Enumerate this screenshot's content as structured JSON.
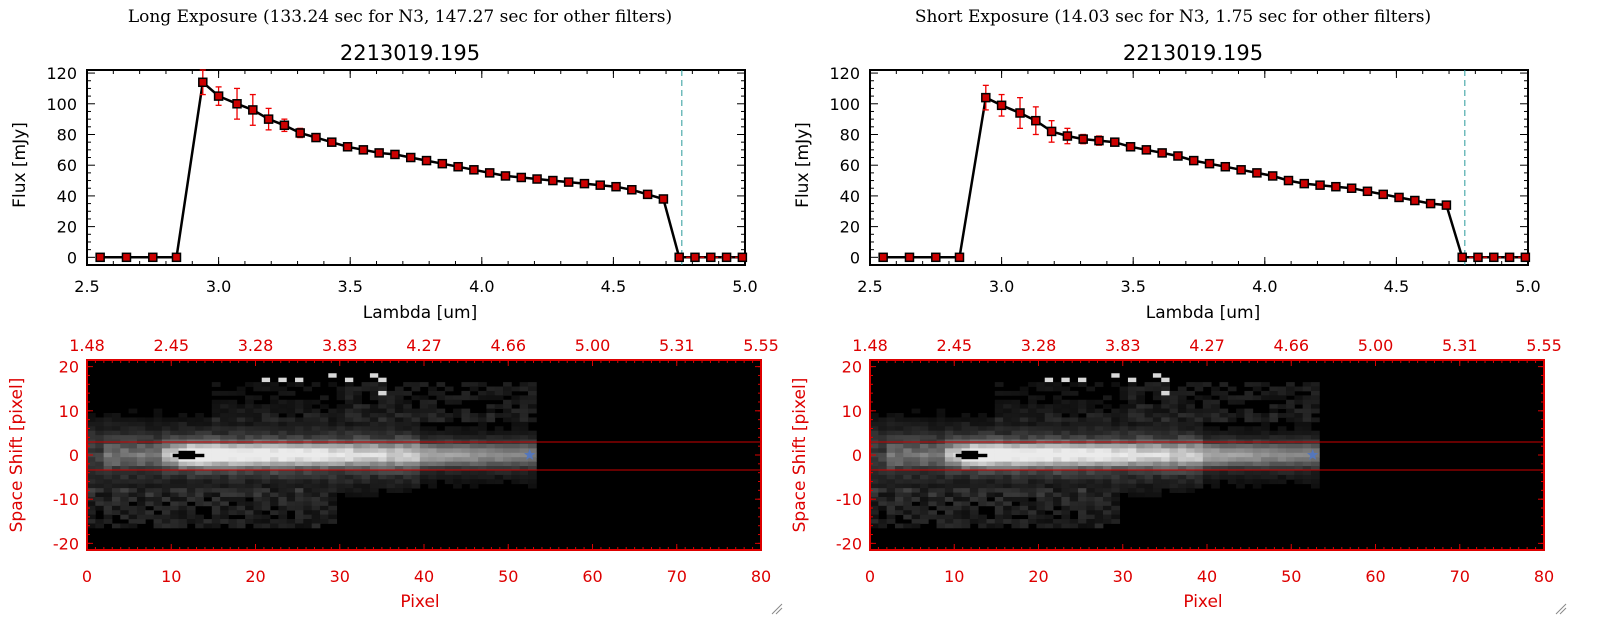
{
  "panels": [
    {
      "header": "Long Exposure (133.24 sec for N3, 147.27 sec for other filters)",
      "object_id": "2213019.195",
      "spectrum": {
        "xlabel": "Lambda [um]",
        "ylabel": "Flux [mJy]",
        "xlim": [
          2.5,
          5.0
        ],
        "ylim": [
          -5,
          122
        ],
        "xticks": [
          "2.5",
          "3.0",
          "3.5",
          "4.0",
          "4.5",
          "5.0"
        ],
        "yticks": [
          "0",
          "20",
          "40",
          "60",
          "80",
          "100",
          "120"
        ],
        "cutoff_line_x": 4.76
      },
      "image": {
        "top_ticks": [
          "1.48",
          "2.45",
          "3.28",
          "3.83",
          "4.27",
          "4.66",
          "5.00",
          "5.31",
          "5.55"
        ],
        "bottom_ticks": [
          "0",
          "10",
          "20",
          "30",
          "40",
          "50",
          "60",
          "70",
          "80"
        ],
        "left_ticks": [
          "20",
          "10",
          "0",
          "-10",
          "-20"
        ],
        "xlabel": "Pixel",
        "ylabel": "Space Shift [pixel]"
      }
    },
    {
      "header": "Short Exposure (14.03 sec for N3, 1.75 sec for other filters)",
      "object_id": "2213019.195",
      "spectrum": {
        "xlabel": "Lambda [um]",
        "ylabel": "Flux [mJy]",
        "xlim": [
          2.5,
          5.0
        ],
        "ylim": [
          -5,
          122
        ],
        "xticks": [
          "2.5",
          "3.0",
          "3.5",
          "4.0",
          "4.5",
          "5.0"
        ],
        "yticks": [
          "0",
          "20",
          "40",
          "60",
          "80",
          "100",
          "120"
        ],
        "cutoff_line_x": 4.76
      },
      "image": {
        "top_ticks": [
          "1.48",
          "2.45",
          "3.28",
          "3.83",
          "4.27",
          "4.66",
          "5.00",
          "5.31",
          "5.55"
        ],
        "bottom_ticks": [
          "0",
          "10",
          "20",
          "30",
          "40",
          "50",
          "60",
          "70",
          "80"
        ],
        "left_ticks": [
          "20",
          "10",
          "0",
          "-10",
          "-20"
        ],
        "xlabel": "Pixel",
        "ylabel": "Space Shift [pixel]"
      }
    }
  ],
  "colors": {
    "axis": "#000000",
    "line": "#000000",
    "marker_fill": "#cc0000",
    "errorbar": "#ee0000",
    "image_axis": "#dd0000",
    "aperture": "#cc0000",
    "cutoff_line": "#2a9a9a",
    "star": "#5577bb"
  },
  "chart_data": [
    {
      "type": "line",
      "x": [
        2.55,
        2.65,
        2.75,
        2.84,
        2.94,
        3.0,
        3.07,
        3.13,
        3.19,
        3.25,
        3.31,
        3.37,
        3.43,
        3.49,
        3.55,
        3.61,
        3.67,
        3.73,
        3.79,
        3.85,
        3.91,
        3.97,
        4.03,
        4.09,
        4.15,
        4.21,
        4.27,
        4.33,
        4.39,
        4.45,
        4.51,
        4.57,
        4.63,
        4.69,
        4.75,
        4.81,
        4.87,
        4.93,
        4.99
      ],
      "y": [
        0,
        0,
        0,
        0,
        114,
        105,
        100,
        96,
        90,
        86,
        81,
        78,
        75,
        72,
        70,
        68,
        67,
        65,
        63,
        61,
        59,
        57,
        55,
        53,
        52,
        51,
        50,
        49,
        48,
        47,
        46,
        44,
        41,
        38,
        0,
        0,
        0,
        0,
        0
      ],
      "yerr": [
        0,
        0,
        0,
        0,
        8,
        6,
        10,
        10,
        7,
        4,
        3,
        2,
        1,
        1,
        1,
        1,
        1,
        1,
        1,
        1,
        1,
        1,
        1,
        1,
        1,
        1,
        1,
        1,
        1,
        1,
        1,
        1,
        1,
        1,
        0,
        0,
        0,
        0,
        0
      ]
    },
    {
      "type": "line",
      "x": [
        2.55,
        2.65,
        2.75,
        2.84,
        2.94,
        3.0,
        3.07,
        3.13,
        3.19,
        3.25,
        3.31,
        3.37,
        3.43,
        3.49,
        3.55,
        3.61,
        3.67,
        3.73,
        3.79,
        3.85,
        3.91,
        3.97,
        4.03,
        4.09,
        4.15,
        4.21,
        4.27,
        4.33,
        4.39,
        4.45,
        4.51,
        4.57,
        4.63,
        4.69,
        4.75,
        4.81,
        4.87,
        4.93,
        4.99
      ],
      "y": [
        0,
        0,
        0,
        0,
        104,
        99,
        94,
        89,
        82,
        79,
        77,
        76,
        75,
        72,
        70,
        68,
        66,
        63,
        61,
        59,
        57,
        55,
        53,
        50,
        48,
        47,
        46,
        45,
        43,
        41,
        39,
        37,
        35,
        34,
        0,
        0,
        0,
        0,
        0
      ],
      "yerr": [
        0,
        0,
        0,
        0,
        8,
        7,
        10,
        9,
        7,
        5,
        3,
        3,
        2,
        1,
        1,
        1,
        1,
        1,
        1,
        1,
        1,
        1,
        1,
        1,
        1,
        1,
        1,
        1,
        1,
        1,
        1,
        1,
        1,
        1,
        0,
        0,
        0,
        0,
        0
      ]
    }
  ]
}
